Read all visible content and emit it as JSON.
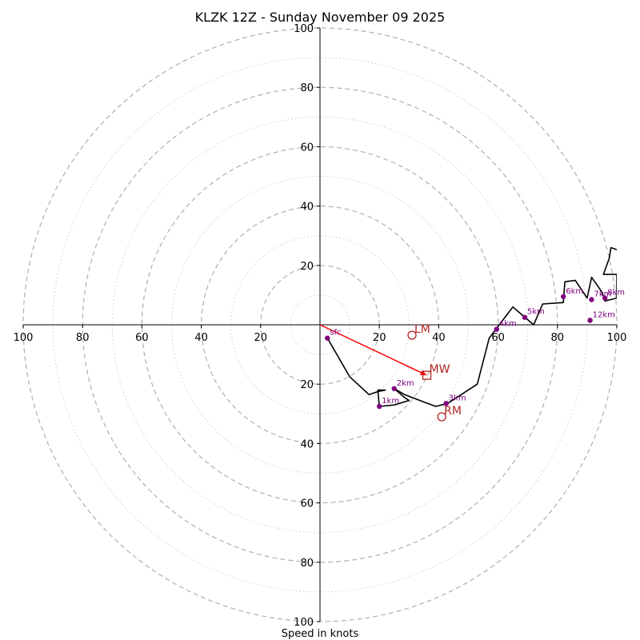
{
  "chart_data": {
    "type": "hodograph",
    "title": "KLZK 12Z - Sunday November 09 2025",
    "xlabel": "Speed in knots",
    "xlim": [
      -100,
      100
    ],
    "ylim": [
      -100,
      100
    ],
    "ring_major": [
      20,
      40,
      60,
      80,
      100
    ],
    "ring_minor": [
      10,
      30,
      50,
      70,
      90
    ],
    "tick_labels": {
      "x_neg": [
        {
          "v": -100,
          "t": "100"
        },
        {
          "v": -80,
          "t": "80"
        },
        {
          "v": -60,
          "t": "60"
        },
        {
          "v": -40,
          "t": "40"
        },
        {
          "v": -20,
          "t": "20"
        }
      ],
      "x_pos": [
        {
          "v": 20,
          "t": "20"
        },
        {
          "v": 40,
          "t": "40"
        },
        {
          "v": 60,
          "t": "60"
        },
        {
          "v": 80,
          "t": "80"
        },
        {
          "v": 100,
          "t": "100"
        }
      ],
      "y_pos": [
        {
          "v": 20,
          "t": "20"
        },
        {
          "v": 40,
          "t": "40"
        },
        {
          "v": 60,
          "t": "60"
        },
        {
          "v": 80,
          "t": "80"
        },
        {
          "v": 100,
          "t": "100"
        }
      ],
      "y_neg": [
        {
          "v": -20,
          "t": "20"
        },
        {
          "v": -40,
          "t": "40"
        },
        {
          "v": -60,
          "t": "60"
        },
        {
          "v": -80,
          "t": "80"
        },
        {
          "v": -100,
          "t": "100"
        }
      ]
    },
    "trace": [
      [
        2.5,
        -4.5
      ],
      [
        10,
        -17.5
      ],
      [
        16.5,
        -23.5
      ],
      [
        19.5,
        -22.5
      ],
      [
        22,
        -22
      ],
      [
        19.5,
        -22
      ],
      [
        20,
        -27.5
      ],
      [
        25,
        -27
      ],
      [
        30,
        -25.5
      ],
      [
        28.5,
        -24.5
      ],
      [
        25,
        -21.5
      ],
      [
        28.5,
        -23.5
      ],
      [
        35,
        -26
      ],
      [
        39,
        -27.5
      ],
      [
        43,
        -26.5
      ],
      [
        53,
        -20
      ],
      [
        57,
        -4.5
      ],
      [
        60,
        -0.5
      ],
      [
        65,
        6
      ],
      [
        68.5,
        3
      ],
      [
        72,
        0
      ],
      [
        75,
        7
      ],
      [
        82,
        7.5
      ],
      [
        82.5,
        14.5
      ],
      [
        86,
        15
      ],
      [
        90,
        9
      ],
      [
        91.5,
        16
      ],
      [
        95,
        11
      ],
      [
        96,
        8
      ],
      [
        100,
        9
      ],
      [
        100,
        17
      ],
      [
        95.5,
        17
      ],
      [
        97.5,
        22.5
      ],
      [
        98,
        26
      ],
      [
        101,
        25
      ]
    ],
    "height_markers": [
      {
        "label": "sfc",
        "u": 2.5,
        "v": -4.5
      },
      {
        "label": "1km",
        "u": 20,
        "v": -27.5
      },
      {
        "label": "2km",
        "u": 25,
        "v": -21.5
      },
      {
        "label": "3km",
        "u": 42.5,
        "v": -26.5
      },
      {
        "label": "4km",
        "u": 59.5,
        "v": -1.5
      },
      {
        "label": "5km",
        "u": 69,
        "v": 2.5
      },
      {
        "label": "6km",
        "u": 82,
        "v": 9.5
      },
      {
        "label": "7km",
        "u": 91.5,
        "v": 8.5
      },
      {
        "label": "8km",
        "u": 96,
        "v": 9
      },
      {
        "label": "12km",
        "u": 91,
        "v": 1.5
      }
    ],
    "storm_motion": {
      "LM": {
        "label": "LM",
        "u": 31,
        "v": -3.5
      },
      "MW": {
        "label": "MW",
        "u": 36,
        "v": -17
      },
      "RM": {
        "label": "RM",
        "u": 41,
        "v": -31
      }
    },
    "shear_vector": {
      "from": [
        0,
        0
      ],
      "to": [
        36,
        -17
      ]
    },
    "colors": {
      "trace": "#000000",
      "markers": "#800080",
      "motion": "#b22222",
      "vector": "#ff0000",
      "ring": "#b0b0b0",
      "minor_ring": "#cccccc",
      "axis": "#000000"
    }
  }
}
